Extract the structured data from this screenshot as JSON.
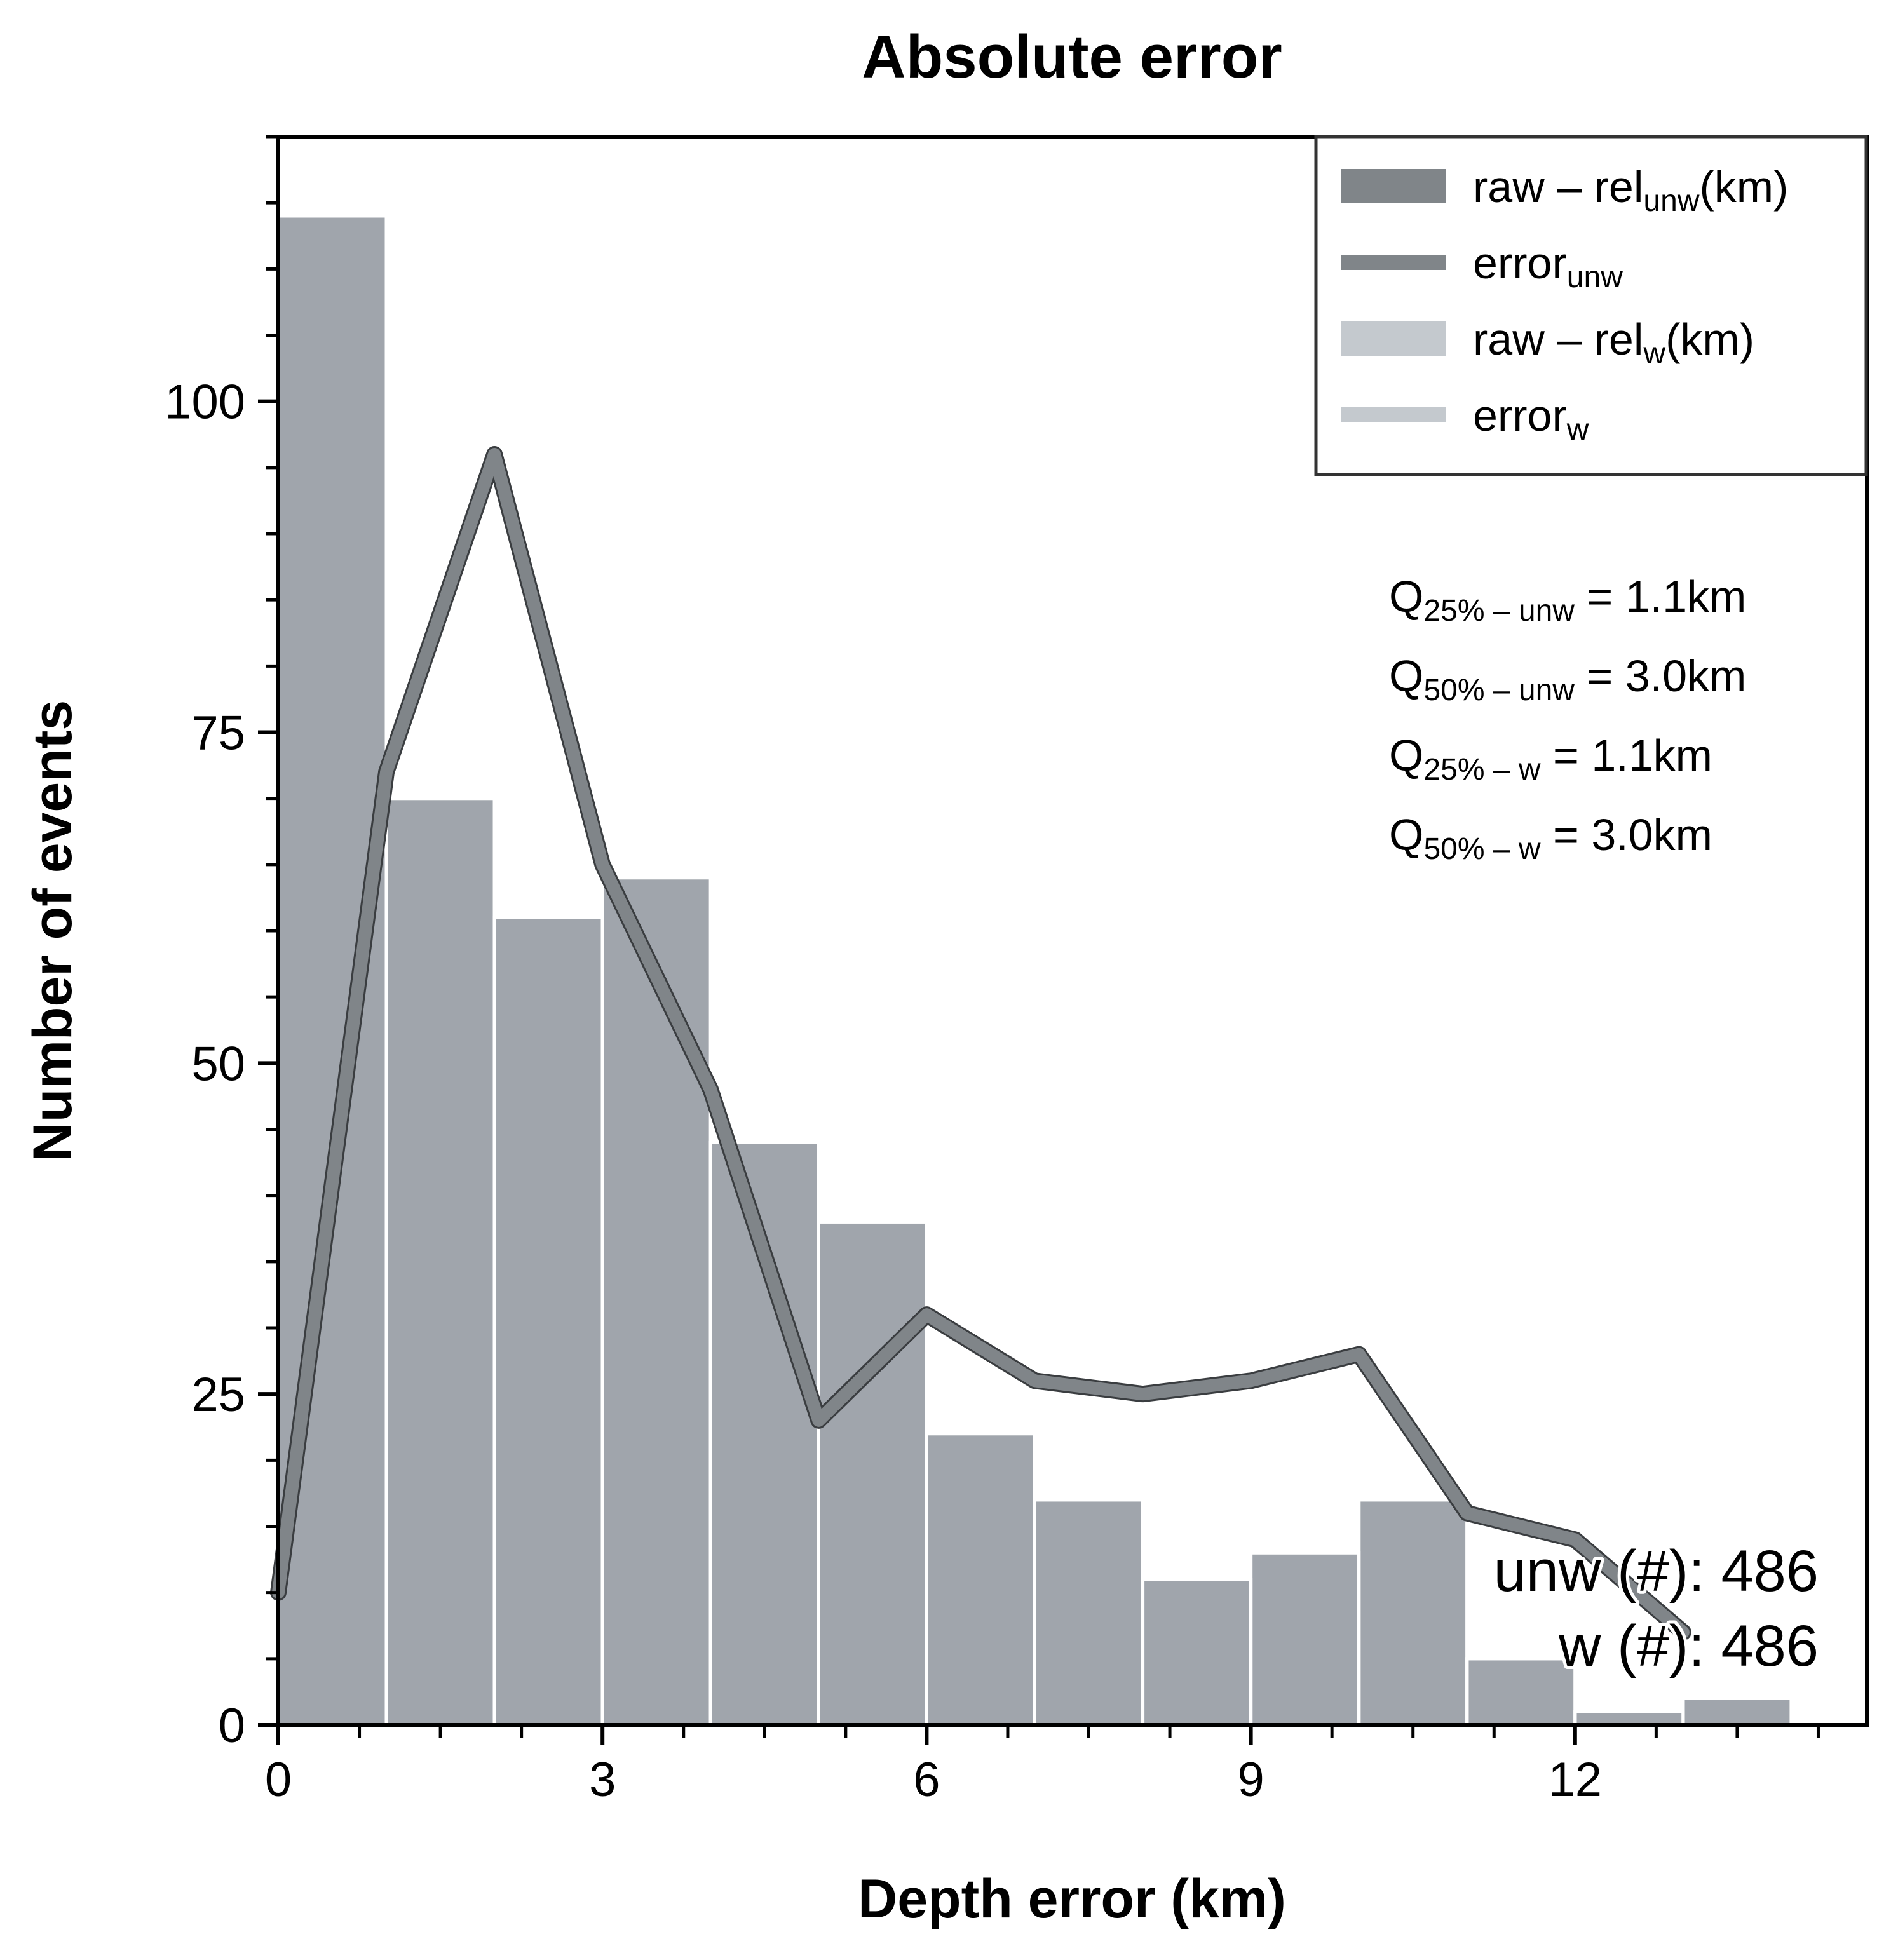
{
  "chart_data": {
    "type": "bar",
    "title": "Absolute error",
    "xlabel": "Depth error (km)",
    "ylabel": "Number of events",
    "xlim": [
      0,
      14.7
    ],
    "ylim": [
      0,
      120
    ],
    "xticks": [
      0,
      3,
      6,
      9,
      12
    ],
    "yticks": [
      0,
      25,
      50,
      75,
      100
    ],
    "x_minor_step": 0.75,
    "y_minor_step": 5,
    "grid": false,
    "legend_position": "top-right",
    "bin_width": 1,
    "series": [
      {
        "name": "raw – rel_unw(km)",
        "legend": {
          "main": "raw – rel",
          "sub": "unw",
          "suffix": "(km)"
        },
        "type": "bar",
        "color": "#808589",
        "bins": [
          0,
          1,
          2,
          3,
          4,
          5,
          6,
          7,
          8,
          9,
          10,
          11,
          12,
          13
        ],
        "values": [
          114,
          70,
          61,
          64,
          44,
          38,
          22,
          17,
          11,
          13,
          17,
          5,
          1,
          2
        ]
      },
      {
        "name": "error_unw",
        "legend": {
          "main": "error",
          "sub": "unw",
          "suffix": ""
        },
        "type": "line",
        "color": "#808589",
        "x": [
          0,
          1,
          2,
          3,
          4,
          5,
          6,
          7,
          8,
          9,
          10,
          11,
          12,
          13
        ],
        "values": [
          10,
          72,
          96,
          65,
          48,
          23,
          31,
          26,
          25,
          26,
          28,
          16,
          14,
          7
        ]
      },
      {
        "name": "raw – rel_w(km)",
        "legend": {
          "main": "raw – rel",
          "sub": "w",
          "suffix": "(km)"
        },
        "type": "bar",
        "color": "#c4c9ce",
        "bins": [
          0,
          1,
          2,
          3,
          4,
          5,
          6,
          7,
          8,
          9,
          10,
          11,
          12,
          13
        ],
        "values": [
          114,
          70,
          61,
          64,
          44,
          38,
          22,
          17,
          11,
          13,
          17,
          5,
          1,
          2
        ]
      },
      {
        "name": "error_w",
        "legend": {
          "main": "error",
          "sub": "w",
          "suffix": ""
        },
        "type": "line",
        "color": "#c4c9ce",
        "x": [
          0,
          1,
          2,
          3,
          4,
          5,
          6,
          7,
          8,
          9,
          10,
          11,
          12,
          13
        ],
        "values": [
          10,
          72,
          96,
          65,
          48,
          23,
          31,
          26,
          25,
          26,
          28,
          16,
          14,
          7
        ]
      }
    ],
    "annotations": {
      "quantiles": [
        {
          "q": "Q",
          "sub": "25% – unw",
          "value": " = 1.1km"
        },
        {
          "q": "Q",
          "sub": "50% – unw",
          "value": " = 3.0km"
        },
        {
          "q": "Q",
          "sub": "25% – w",
          "value": " = 1.1km"
        },
        {
          "q": "Q",
          "sub": "50% – w",
          "value": " = 3.0km"
        }
      ],
      "counts": [
        "unw (#): 486",
        "w (#): 486"
      ]
    },
    "bar_fill_overlay": "#a0a5ac",
    "edge_color": "#ffffff"
  }
}
